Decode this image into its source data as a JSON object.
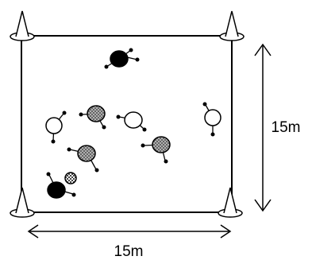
{
  "field": {
    "width_label": "15m",
    "height_label": "15m"
  },
  "legend_colors": {
    "attacker": "#000000",
    "defender_hatched": "#9a9a9a",
    "neutral_open": "#ffffff",
    "ball": "#bdbdbd"
  },
  "players": [
    {
      "id": "p-black-top",
      "kind": "attacker"
    },
    {
      "id": "p-white-left",
      "kind": "neutral_open"
    },
    {
      "id": "p-gray-center-top",
      "kind": "defender_hatched"
    },
    {
      "id": "p-white-center",
      "kind": "neutral_open"
    },
    {
      "id": "p-white-right",
      "kind": "neutral_open"
    },
    {
      "id": "p-gray-left",
      "kind": "defender_hatched"
    },
    {
      "id": "p-gray-right",
      "kind": "defender_hatched"
    },
    {
      "id": "p-black-bottom",
      "kind": "attacker"
    }
  ],
  "ball": {
    "kind": "ball"
  },
  "cones": [
    "top-left",
    "top-right",
    "bottom-left",
    "bottom-right"
  ]
}
